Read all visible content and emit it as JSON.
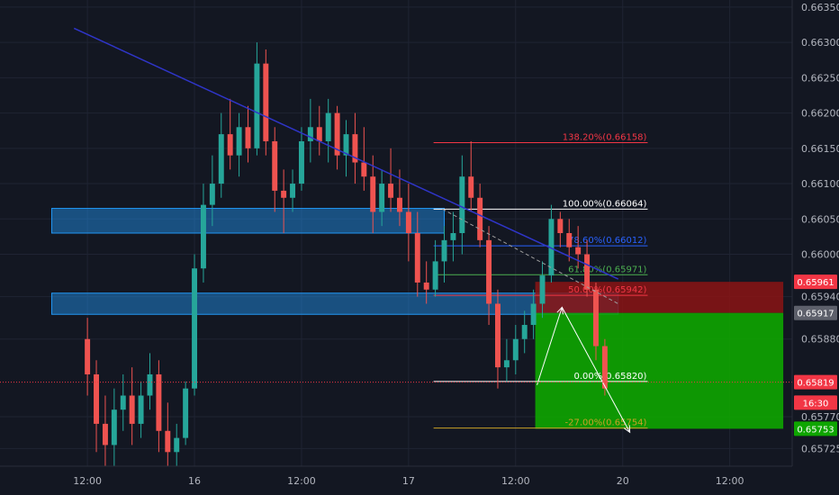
{
  "chart_data": {
    "type": "candlestick",
    "title": "",
    "xlabel": "",
    "ylabel": "",
    "ylim": [
      0.657,
      0.6636
    ],
    "grid": true,
    "colors": {
      "background": "#131722",
      "grid": "#1f2433",
      "up": "#26a69a",
      "down": "#ef5350",
      "trendline": "#2f35c9",
      "zone": "#2196f3",
      "target_zone": "#0ea500",
      "stop_zone": "#8b1414"
    },
    "y_ticks": [
      "0.66350",
      "0.66300",
      "0.66250",
      "0.66200",
      "0.66150",
      "0.66100",
      "0.66050",
      "0.66000",
      "0.65940",
      "0.65880",
      "0.65770",
      "0.65725"
    ],
    "x_ticks": [
      {
        "label": "12:00",
        "x": 0.0
      },
      {
        "label": "16",
        "x": 12.0
      },
      {
        "label": "12:00",
        "x": 24.0
      },
      {
        "label": "17",
        "x": 36.0
      },
      {
        "label": "12:00",
        "x": 48.0
      },
      {
        "label": "20",
        "x": 60.0
      },
      {
        "label": "12:00",
        "x": 72.0
      }
    ],
    "xlim": [
      -9.8,
      79.0
    ],
    "ohlc": [
      [
        0.6588,
        0.6591,
        0.658,
        0.6583
      ],
      [
        0.6583,
        0.6585,
        0.6572,
        0.6576
      ],
      [
        0.6576,
        0.658,
        0.657,
        0.6573
      ],
      [
        0.6573,
        0.6581,
        0.657,
        0.6578
      ],
      [
        0.6578,
        0.6583,
        0.6575,
        0.658
      ],
      [
        0.658,
        0.6584,
        0.6573,
        0.6576
      ],
      [
        0.6576,
        0.6582,
        0.6574,
        0.658
      ],
      [
        0.658,
        0.6586,
        0.6578,
        0.6583
      ],
      [
        0.6583,
        0.6585,
        0.6572,
        0.6575
      ],
      [
        0.6575,
        0.6579,
        0.657,
        0.6572
      ],
      [
        0.6572,
        0.6576,
        0.657,
        0.6574
      ],
      [
        0.6574,
        0.6582,
        0.6573,
        0.6581
      ],
      [
        0.6581,
        0.66,
        0.658,
        0.6598
      ],
      [
        0.6598,
        0.661,
        0.6596,
        0.6607
      ],
      [
        0.6607,
        0.6614,
        0.6604,
        0.661
      ],
      [
        0.661,
        0.662,
        0.6608,
        0.6617
      ],
      [
        0.6617,
        0.6622,
        0.6612,
        0.6614
      ],
      [
        0.6614,
        0.662,
        0.6611,
        0.6618
      ],
      [
        0.6618,
        0.6621,
        0.6613,
        0.6615
      ],
      [
        0.6615,
        0.663,
        0.6614,
        0.6627
      ],
      [
        0.6627,
        0.6629,
        0.6614,
        0.6616
      ],
      [
        0.6616,
        0.6618,
        0.6606,
        0.6609
      ],
      [
        0.6609,
        0.6612,
        0.6603,
        0.6608
      ],
      [
        0.6608,
        0.6612,
        0.6606,
        0.661
      ],
      [
        0.661,
        0.6618,
        0.6609,
        0.6616
      ],
      [
        0.6616,
        0.6622,
        0.6613,
        0.6618
      ],
      [
        0.6618,
        0.6621,
        0.6614,
        0.6616
      ],
      [
        0.6616,
        0.6622,
        0.6613,
        0.662
      ],
      [
        0.662,
        0.6621,
        0.6612,
        0.6614
      ],
      [
        0.6614,
        0.6619,
        0.6611,
        0.6617
      ],
      [
        0.6617,
        0.662,
        0.661,
        0.6613
      ],
      [
        0.6613,
        0.6618,
        0.6609,
        0.6611
      ],
      [
        0.6611,
        0.6614,
        0.6603,
        0.6606
      ],
      [
        0.6606,
        0.6612,
        0.6604,
        0.661
      ],
      [
        0.661,
        0.6615,
        0.6606,
        0.6608
      ],
      [
        0.6608,
        0.6612,
        0.6604,
        0.6606
      ],
      [
        0.6606,
        0.661,
        0.6599,
        0.6603
      ],
      [
        0.6603,
        0.6606,
        0.6594,
        0.6596
      ],
      [
        0.6596,
        0.6599,
        0.6593,
        0.6595
      ],
      [
        0.6595,
        0.6602,
        0.6594,
        0.6599
      ],
      [
        0.6599,
        0.6604,
        0.6596,
        0.6602
      ],
      [
        0.6602,
        0.6606,
        0.6599,
        0.6603
      ],
      [
        0.6603,
        0.6614,
        0.66,
        0.6611
      ],
      [
        0.6611,
        0.6616,
        0.6606,
        0.6608
      ],
      [
        0.6608,
        0.661,
        0.6601,
        0.6602
      ],
      [
        0.6602,
        0.6604,
        0.659,
        0.6593
      ],
      [
        0.6593,
        0.6595,
        0.6581,
        0.6584
      ],
      [
        0.6584,
        0.6588,
        0.6582,
        0.6585
      ],
      [
        0.6585,
        0.659,
        0.6583,
        0.6588
      ],
      [
        0.6588,
        0.6592,
        0.6586,
        0.659
      ],
      [
        0.659,
        0.6595,
        0.6588,
        0.6593
      ],
      [
        0.6593,
        0.6599,
        0.6591,
        0.6597
      ],
      [
        0.6597,
        0.6607,
        0.6596,
        0.6605
      ],
      [
        0.6605,
        0.6606,
        0.6601,
        0.6603
      ],
      [
        0.6603,
        0.6605,
        0.6599,
        0.6601
      ],
      [
        0.6601,
        0.6604,
        0.6598,
        0.66
      ],
      [
        0.66,
        0.6602,
        0.6594,
        0.6595
      ],
      [
        0.6595,
        0.6596,
        0.6585,
        0.6587
      ],
      [
        0.6587,
        0.6588,
        0.658,
        0.6581
      ]
    ],
    "zones": [
      {
        "name": "resistance-zone-upper",
        "y_top": 0.66065,
        "y_bottom": 0.6603,
        "x_start": -4.0,
        "x_end": 40.0
      },
      {
        "name": "resistance-zone-lower",
        "y_top": 0.65945,
        "y_bottom": 0.65915,
        "x_start": -4.0,
        "x_end": 59.5
      }
    ],
    "trendline": {
      "x1": -1.5,
      "y1": 0.6632,
      "x2": 59.5,
      "y2": 0.65965
    },
    "fibonacci": {
      "x_start": 38.8,
      "x_end": 62.8,
      "levels": [
        {
          "label": "138.20%(0.66158)",
          "price": 0.66158,
          "color": "#f23645"
        },
        {
          "label": "100.00%(0.66064)",
          "price": 0.66064,
          "color": "#ffffff"
        },
        {
          "label": "78.60%(0.66012)",
          "price": 0.66012,
          "color": "#2962ff"
        },
        {
          "label": "61.80%(0.65971)",
          "price": 0.65971,
          "color": "#4caf50"
        },
        {
          "label": "50.00%(0.65942)",
          "price": 0.65942,
          "color": "#f23645"
        },
        {
          "label": "0.00%(0.65820)",
          "price": 0.6582,
          "color": "#ffffff"
        },
        {
          "label": "-27.00%(0.65754)",
          "price": 0.65754,
          "color": "#c9a227"
        }
      ]
    },
    "position": {
      "x_start": 50.2,
      "x_end": 78.0,
      "stop": 0.65961,
      "entry": 0.65917,
      "target": 0.65753
    },
    "projection": [
      {
        "x": 50.4,
        "y": 0.65815
      },
      {
        "x": 53.2,
        "y": 0.65925
      },
      {
        "x": 60.8,
        "y": 0.65748
      }
    ],
    "current_price": 0.65819,
    "price_tags": [
      {
        "label": "0.65961",
        "price": 0.65961,
        "bg": "#f23645"
      },
      {
        "label": "0.65917",
        "price": 0.65917,
        "bg": "#5d606b"
      },
      {
        "label": "0.65819",
        "price": 0.65819,
        "bg": "#f23645"
      },
      {
        "label": "16:30",
        "price": 0.6579,
        "bg": "#f23645"
      },
      {
        "label": "0.65753",
        "price": 0.65753,
        "bg": "#0ea500"
      }
    ]
  }
}
